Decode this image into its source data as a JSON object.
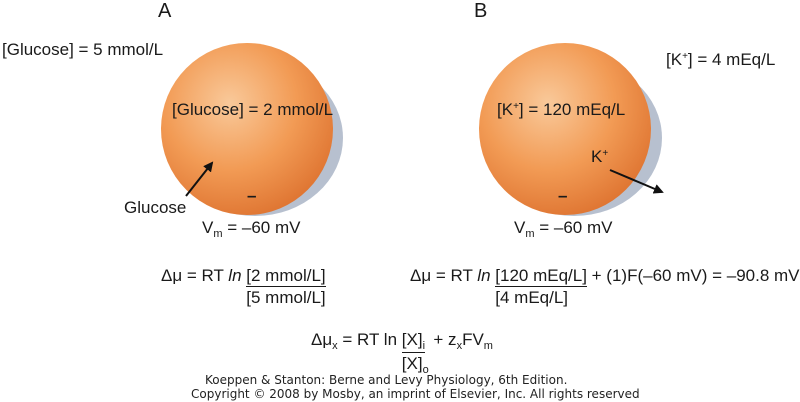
{
  "panel_a": {
    "letter": "A",
    "outside_label": "[Glucose] = 5 mmol/L",
    "inside_label": "[Glucose] = 2 mmol/L",
    "arrow_label": "Glucose",
    "minus": "–",
    "vm_sym": "V",
    "vm_sub": "m",
    "vm_value": " = –60 mV",
    "eq_lhs": "Δμ = RT ",
    "eq_ln": "ln",
    "eq_num": "[2 mmol/L]",
    "eq_den": "[5 mmol/L]"
  },
  "panel_b": {
    "letter": "B",
    "outside_pre": "[K",
    "outside_sup": "+",
    "outside_post": "] = 4 mEq/L",
    "inside_pre": "[K",
    "inside_sup": "+",
    "inside_post": "] = 120 mEq/L",
    "arrow_pre": "K",
    "arrow_sup": "+",
    "minus": "–",
    "vm_sym": "V",
    "vm_sub": "m",
    "vm_value": " = –60 mV",
    "eq_lhs": "Δμ = RT ",
    "eq_ln": "ln",
    "eq_num": "[120 mEq/L]",
    "eq_den": "[4 mEq/L]",
    "eq_rest": " + (1)F(–60 mV) = –90.8 mV"
  },
  "general_equation": {
    "lhs_sym": "Δμ",
    "lhs_sub": "x",
    "mid": " = RT ln ",
    "num_pre": "[X]",
    "num_sub": "i",
    "den_pre": "[X]",
    "den_sub": "o",
    "tail1": " + z",
    "tail_sub1": "x",
    "tail2": "FV",
    "tail_sub2": "m"
  },
  "credit": {
    "line1": "Koeppen & Stanton: Berne and Levy Physiology, 6th Edition.",
    "line2": "Copyright © 2008 by Mosby, an imprint of Elsevier, Inc. All rights reserved"
  },
  "colors": {
    "cell_light": "#f7c08a",
    "cell_mid": "#f0924a",
    "cell_dark": "#d96a2a",
    "shadow": "#aeb8c8"
  }
}
